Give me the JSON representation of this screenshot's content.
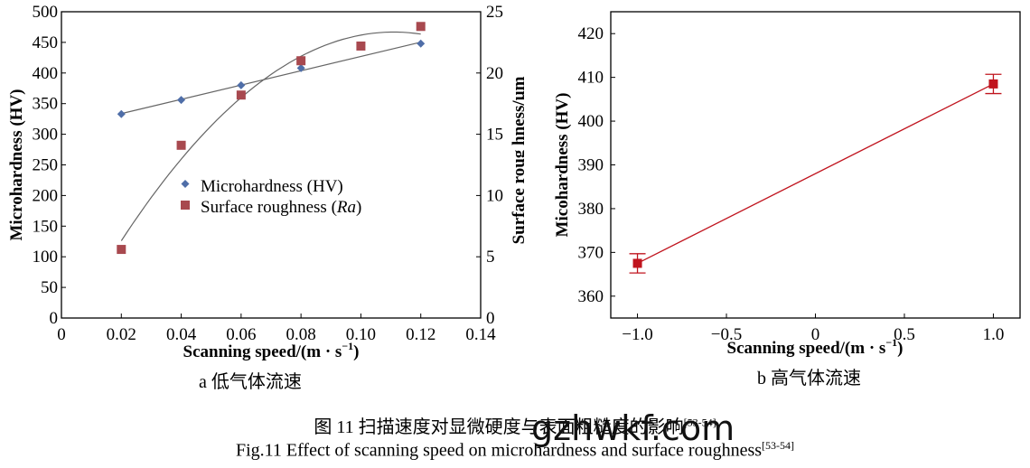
{
  "chart_data": [
    {
      "id": "a",
      "type": "scatter",
      "xlabel": "Scanning speed/(m · s",
      "xlabel_sup": "−1",
      "xlabel_end": ")",
      "ylabel": "Microhardness (HV)",
      "y2label": "Surface roug hness/µm",
      "xlim": [
        0,
        0.14
      ],
      "ylim": [
        0,
        500
      ],
      "y2lim": [
        0,
        25
      ],
      "x_ticks": [
        "0",
        "0.02",
        "0.04",
        "0.06",
        "0.08",
        "0.10",
        "0.12",
        "0.14"
      ],
      "y_ticks": [
        "0",
        "50",
        "100",
        "150",
        "200",
        "250",
        "300",
        "350",
        "400",
        "450",
        "500"
      ],
      "y2_ticks": [
        "0",
        "5",
        "10",
        "15",
        "20",
        "25"
      ],
      "legend": {
        "position": "center-left",
        "entries": [
          "Microhardness (HV)",
          "Surface roughness ("
        ],
        "italic_suffix": "Ra",
        "suffix_end": ")"
      },
      "series": [
        {
          "name": "Microhardness (HV)",
          "axis": "left",
          "marker": "diamond",
          "color": "#4f6ea8",
          "x": [
            0.02,
            0.04,
            0.06,
            0.08,
            0.12
          ],
          "y": [
            333,
            356,
            380,
            408,
            448
          ],
          "trend": "linear"
        },
        {
          "name": "Surface roughness (Ra)",
          "axis": "right",
          "marker": "square",
          "color": "#a8494f",
          "x": [
            0.02,
            0.04,
            0.06,
            0.08,
            0.1,
            0.12
          ],
          "y": [
            5.6,
            14.1,
            18.2,
            21.0,
            22.2,
            23.8
          ],
          "trend": "quadratic"
        }
      ],
      "trend_color": "#666666"
    },
    {
      "id": "b",
      "type": "line",
      "xlabel": "Scanning speed/(m · s",
      "xlabel_sup": "−1",
      "xlabel_end": ")",
      "ylabel": "Micohardness (HV)",
      "xlim": [
        -1.15,
        1.15
      ],
      "ylim": [
        355,
        425
      ],
      "x_ticks": [
        "−1.0",
        "−0.5",
        "0",
        "0.5",
        "1.0"
      ],
      "y_ticks": [
        "360",
        "370",
        "380",
        "390",
        "400",
        "410",
        "420"
      ],
      "series": [
        {
          "name": "",
          "color": "#c0141e",
          "marker": "square",
          "x": [
            -1.0,
            1.0
          ],
          "y": [
            367.5,
            408.5
          ],
          "err": [
            2.2,
            2.2
          ]
        }
      ]
    }
  ],
  "captions": {
    "a": "a  低气体流速",
    "b": "b  高气体流速",
    "zh": "图 11    扫描速度对显微硬度与表面粗糙度的影响",
    "en": "Fig.11 Effect of scanning speed on microhardness and surface roughness",
    "ref": "[53-54]",
    "watermark": "gzhwkf.com"
  }
}
